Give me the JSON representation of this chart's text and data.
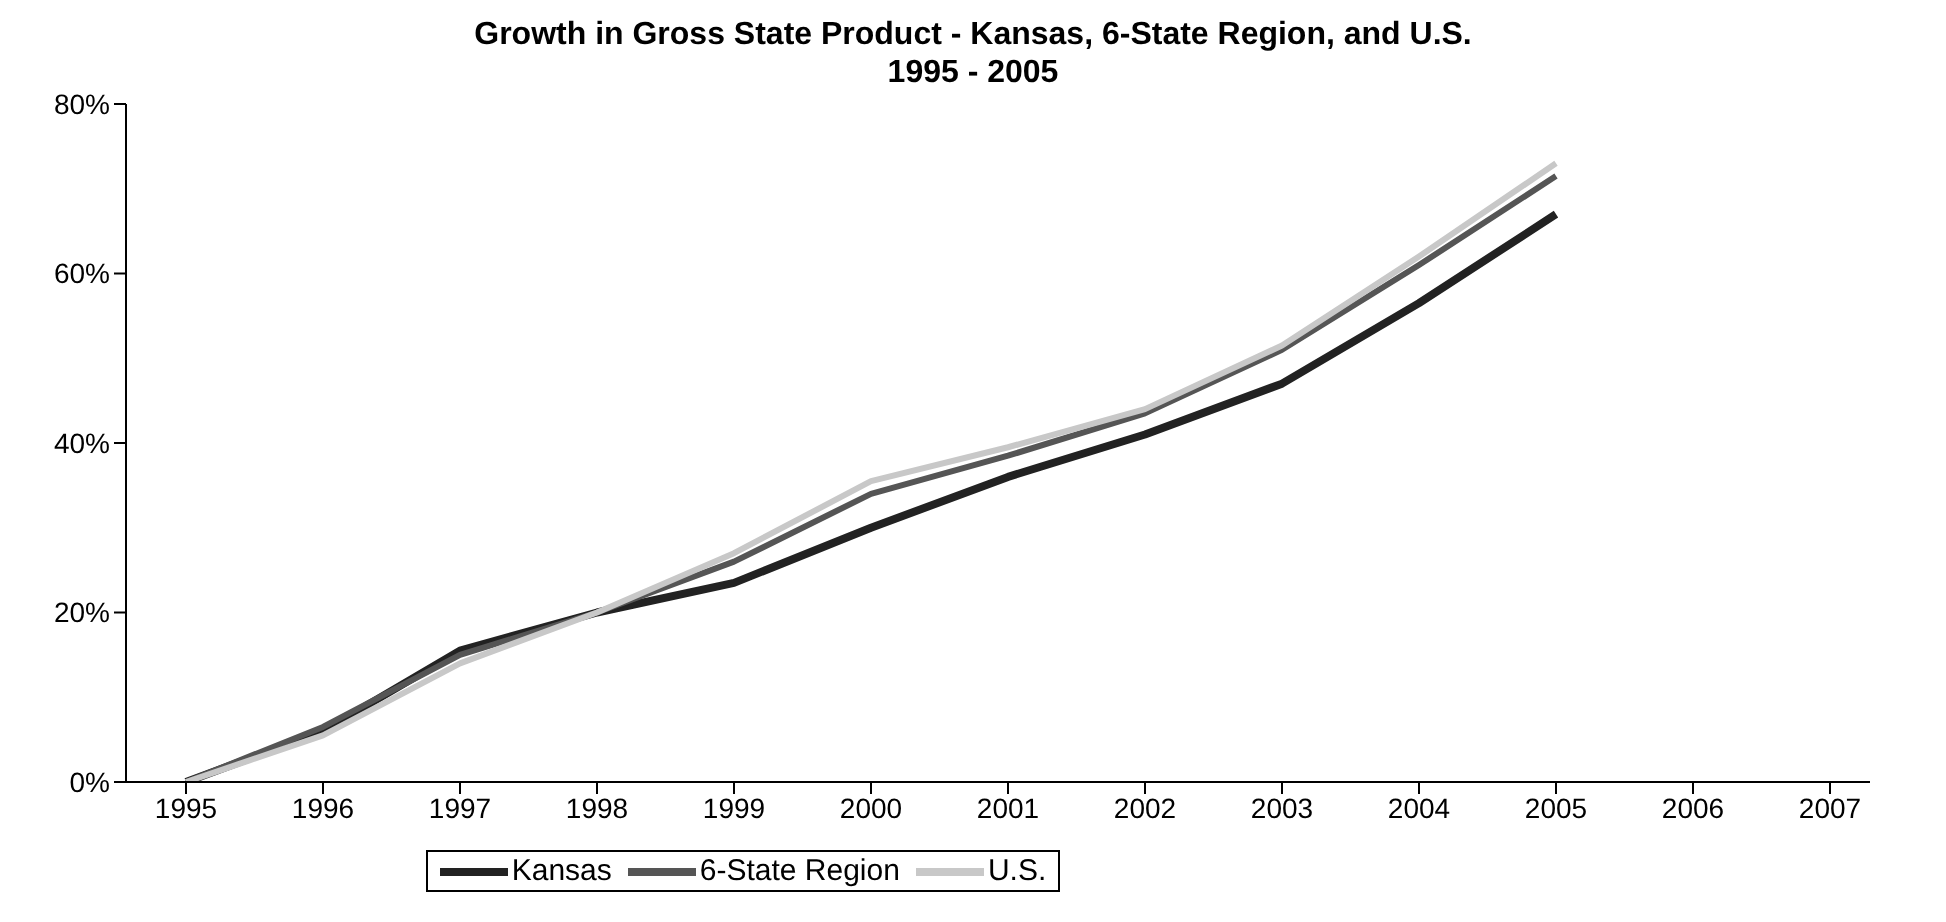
{
  "chart_data": {
    "type": "line",
    "title": "Growth in Gross State Product - Kansas, 6-State Region, and U.S.",
    "subtitle": "1995 - 2005",
    "categories": [
      "1995",
      "1996",
      "1997",
      "1998",
      "1999",
      "2000",
      "2001",
      "2002",
      "2003",
      "2004",
      "2005",
      "2006",
      "2007"
    ],
    "series": [
      {
        "name": "Kansas",
        "color": "#222222",
        "values": [
          0,
          6,
          15.5,
          20,
          23.5,
          30,
          36,
          41,
          47,
          56.5,
          67,
          null,
          null
        ]
      },
      {
        "name": "6-State Region",
        "color": "#555555",
        "values": [
          0,
          6.5,
          15,
          20,
          26,
          34,
          38.5,
          43.5,
          51,
          61,
          71.5,
          null,
          null
        ]
      },
      {
        "name": "U.S.",
        "color": "#c8c8c8",
        "values": [
          0,
          5.5,
          14,
          20,
          27,
          35.5,
          39.5,
          44,
          51.5,
          62,
          73,
          null,
          null
        ]
      }
    ],
    "ylim": [
      0,
      80
    ],
    "yticks": [
      {
        "value": 0,
        "label": "0%"
      },
      {
        "value": 20,
        "label": "20%"
      },
      {
        "value": 40,
        "label": "40%"
      },
      {
        "value": 60,
        "label": "60%"
      },
      {
        "value": 80,
        "label": "80%"
      }
    ],
    "grid": false,
    "legend": "bottom",
    "marker": "none",
    "line_style": "solid"
  }
}
